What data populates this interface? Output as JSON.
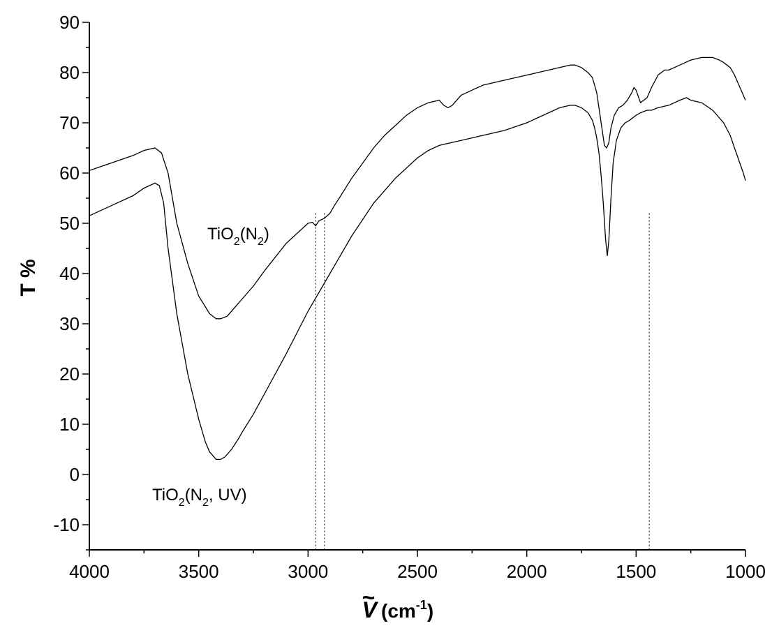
{
  "chart_data": {
    "type": "line",
    "title": "",
    "xlabel": "V",
    "xlabel_accent": "~",
    "xlabel_unit": "(cm",
    "xlabel_unit_sup": "-1",
    "xlabel_unit_close": ")",
    "ylabel": "T %",
    "xlim": [
      4000,
      1000
    ],
    "ylim": [
      -15,
      90
    ],
    "x_reversed": true,
    "x_ticks": [
      "4000",
      "3500",
      "3000",
      "2500",
      "2000",
      "1500",
      "1000"
    ],
    "y_ticks": [
      "-10",
      "0",
      "10",
      "20",
      "30",
      "40",
      "50",
      "60",
      "70",
      "80",
      "90"
    ],
    "grid": false,
    "annotations": [
      {
        "base": "TiO",
        "sub1": "2",
        "mid": "(N",
        "sub2": "2",
        "end": ")"
      },
      {
        "base": "TiO",
        "sub1": "2",
        "mid": "(N",
        "sub2": "2",
        "end": ", UV)"
      }
    ],
    "vertical_markers": [
      2965,
      2925,
      1440
    ],
    "series": [
      {
        "x": [
          4000,
          3900,
          3800,
          3750,
          3700,
          3670,
          3640,
          3600,
          3550,
          3500,
          3450,
          3420,
          3400,
          3370,
          3330,
          3300,
          3250,
          3200,
          3100,
          3000,
          2980,
          2965,
          2950,
          2925,
          2900,
          2880,
          2850,
          2800,
          2750,
          2700,
          2650,
          2600,
          2550,
          2500,
          2450,
          2400,
          2380,
          2360,
          2340,
          2320,
          2300,
          2250,
          2200,
          2100,
          2000,
          1900,
          1850,
          1800,
          1780,
          1750,
          1720,
          1700,
          1680,
          1660,
          1645,
          1635,
          1625,
          1615,
          1600,
          1580,
          1560,
          1540,
          1520,
          1510,
          1500,
          1480,
          1450,
          1430,
          1400,
          1370,
          1350,
          1300,
          1250,
          1200,
          1150,
          1120,
          1100,
          1070,
          1050,
          1030,
          1010,
          1000
        ],
        "values": [
          60.5,
          62.0,
          63.5,
          64.5,
          65.0,
          64.0,
          60.0,
          50.0,
          42.0,
          35.5,
          32.0,
          31.0,
          31.0,
          31.5,
          33.5,
          35.0,
          37.5,
          40.5,
          46.0,
          50.0,
          50.2,
          49.5,
          50.5,
          51.0,
          52.0,
          53.5,
          55.5,
          59.0,
          62.0,
          65.0,
          67.5,
          69.5,
          71.5,
          73.0,
          74.0,
          74.5,
          73.5,
          73.0,
          73.5,
          74.5,
          75.5,
          76.5,
          77.5,
          78.5,
          79.5,
          80.5,
          81.0,
          81.5,
          81.5,
          81.0,
          80.0,
          79.0,
          76.0,
          70.0,
          65.5,
          65.0,
          66.0,
          69.0,
          71.5,
          73.0,
          73.5,
          74.5,
          76.0,
          77.0,
          76.5,
          74.0,
          75.0,
          77.0,
          79.5,
          80.5,
          80.5,
          81.5,
          82.5,
          83.0,
          83.0,
          82.5,
          82.0,
          81.0,
          79.5,
          77.5,
          75.5,
          74.5
        ]
      },
      {
        "x": [
          4000,
          3900,
          3800,
          3750,
          3700,
          3680,
          3660,
          3640,
          3600,
          3550,
          3500,
          3470,
          3450,
          3420,
          3400,
          3380,
          3350,
          3320,
          3300,
          3250,
          3200,
          3100,
          3000,
          2900,
          2800,
          2700,
          2600,
          2500,
          2450,
          2400,
          2350,
          2300,
          2200,
          2100,
          2000,
          1900,
          1850,
          1800,
          1780,
          1750,
          1720,
          1700,
          1690,
          1680,
          1670,
          1660,
          1650,
          1640,
          1632,
          1625,
          1615,
          1605,
          1590,
          1570,
          1550,
          1530,
          1500,
          1480,
          1450,
          1430,
          1400,
          1350,
          1300,
          1270,
          1250,
          1200,
          1150,
          1100,
          1070,
          1050,
          1030,
          1010,
          1000
        ],
        "values": [
          51.5,
          53.5,
          55.5,
          57.0,
          58.0,
          57.5,
          54.0,
          45.0,
          32.0,
          20.0,
          11.0,
          6.5,
          4.5,
          3.0,
          3.0,
          3.5,
          5.0,
          7.0,
          8.5,
          12.0,
          16.0,
          24.0,
          32.5,
          40.0,
          47.5,
          54.0,
          59.0,
          63.0,
          64.5,
          65.5,
          66.0,
          66.5,
          67.5,
          68.5,
          70.0,
          72.0,
          73.0,
          73.5,
          73.5,
          73.0,
          72.0,
          70.5,
          69.0,
          67.0,
          64.0,
          59.5,
          54.0,
          47.0,
          43.5,
          46.5,
          55.0,
          62.0,
          66.5,
          69.0,
          70.0,
          70.5,
          71.5,
          72.0,
          72.5,
          72.5,
          73.0,
          73.5,
          74.5,
          75.0,
          74.5,
          74.0,
          72.5,
          70.0,
          67.5,
          65.0,
          62.5,
          60.0,
          58.5
        ]
      }
    ]
  }
}
